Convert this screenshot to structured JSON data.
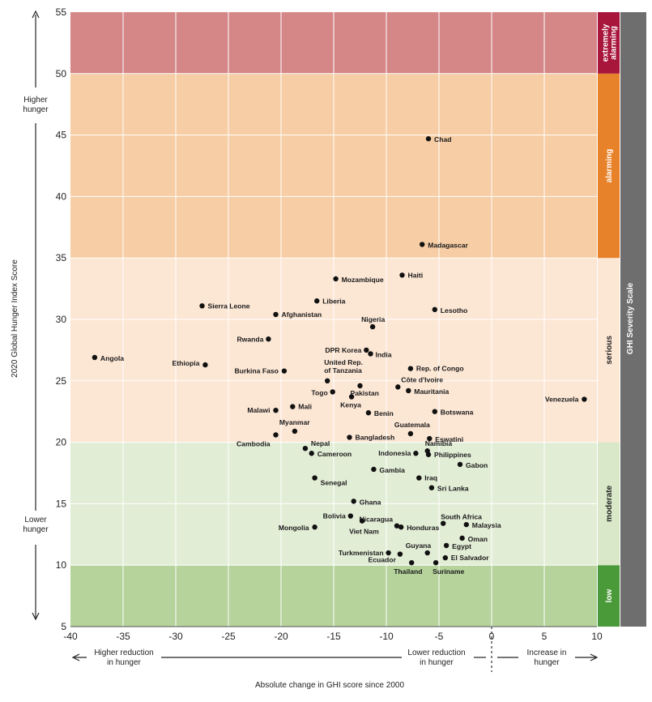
{
  "chart_data": {
    "type": "scatter",
    "title": "",
    "xlabel": "Absolute change in GHI score since 2000",
    "ylabel": "2020 Global Hunger Index Score",
    "xlim": [
      -40,
      10
    ],
    "ylim": [
      5,
      55
    ],
    "x_ticks": [
      -40,
      -35,
      -30,
      -25,
      -20,
      -15,
      -10,
      -5,
      0,
      5,
      10
    ],
    "x_tick_labels": [
      "-40",
      "-35",
      "-30",
      "-25",
      "-20",
      "-15",
      "-10",
      "-5",
      "0",
      "5",
      "10"
    ],
    "y_ticks": [
      5,
      10,
      15,
      20,
      25,
      30,
      35,
      40,
      45,
      50,
      55
    ],
    "grid": true,
    "severity_scale_title": "GHI Severity Scale",
    "bands": [
      {
        "name": "low",
        "from": 5,
        "to": 10,
        "color": "#b5d39b",
        "tag_color": "#4a9a3a"
      },
      {
        "name": "moderate",
        "from": 10,
        "to": 20,
        "color": "#e2edd6",
        "tag_color": "#d8e8c8"
      },
      {
        "name": "serious",
        "from": 20,
        "to": 35,
        "color": "#fce6d4",
        "tag_color": "#fce6d4"
      },
      {
        "name": "alarming",
        "from": 35,
        "to": 50,
        "color": "#f6cda4",
        "tag_color": "#e8822a"
      },
      {
        "name": "extremely alarming",
        "from": 50,
        "to": 55,
        "color": "#d58787",
        "tag_color": "#a8163c"
      }
    ],
    "y_annotations": {
      "higher": "Higher hunger",
      "lower": "Lower hunger"
    },
    "x_annotations": {
      "higher_reduction": "Higher reduction in hunger",
      "lower_reduction": "Lower reduction in hunger",
      "increase": "Increase in hunger"
    },
    "points": [
      {
        "label": "Chad",
        "x": -6.0,
        "y": 44.7
      },
      {
        "label": "Madagascar",
        "x": -6.6,
        "y": 36.1
      },
      {
        "label": "Haiti",
        "x": -8.5,
        "y": 33.6
      },
      {
        "label": "Mozambique",
        "x": -14.8,
        "y": 33.3
      },
      {
        "label": "Liberia",
        "x": -16.6,
        "y": 31.5
      },
      {
        "label": "Sierra Leone",
        "x": -27.5,
        "y": 31.1
      },
      {
        "label": "Lesotho",
        "x": -5.4,
        "y": 30.8
      },
      {
        "label": "Afghanistan",
        "x": -20.5,
        "y": 30.4
      },
      {
        "label": "Nigeria",
        "x": -11.3,
        "y": 29.4
      },
      {
        "label": "Rwanda",
        "x": -21.2,
        "y": 28.4
      },
      {
        "label": "DPR Korea",
        "x": -11.9,
        "y": 27.5
      },
      {
        "label": "India",
        "x": -11.5,
        "y": 27.2
      },
      {
        "label": "Angola",
        "x": -37.7,
        "y": 26.9
      },
      {
        "label": "Ethiopia",
        "x": -27.2,
        "y": 26.3
      },
      {
        "label": "Burkina Faso",
        "x": -19.7,
        "y": 25.8
      },
      {
        "label": "Rep. of Congo",
        "x": -7.7,
        "y": 26.0
      },
      {
        "label": "United Rep. of Tanzania",
        "x": -15.6,
        "y": 25.0
      },
      {
        "label": "Côte d'Ivoire",
        "x": -8.9,
        "y": 24.5
      },
      {
        "label": "Togo",
        "x": -15.1,
        "y": 24.1
      },
      {
        "label": "Pakistan",
        "x": -12.5,
        "y": 24.6
      },
      {
        "label": "Mauritania",
        "x": -7.9,
        "y": 24.2
      },
      {
        "label": "Kenya",
        "x": -13.3,
        "y": 23.7
      },
      {
        "label": "Venezuela",
        "x": 8.8,
        "y": 23.5
      },
      {
        "label": "Mali",
        "x": -18.9,
        "y": 22.9
      },
      {
        "label": "Malawi",
        "x": -20.5,
        "y": 22.6
      },
      {
        "label": "Benin",
        "x": -11.7,
        "y": 22.4
      },
      {
        "label": "Botswana",
        "x": -5.4,
        "y": 22.5
      },
      {
        "label": "Myanmar",
        "x": -18.7,
        "y": 20.9
      },
      {
        "label": "Guatemala",
        "x": -7.7,
        "y": 20.7
      },
      {
        "label": "Cambodia",
        "x": -20.5,
        "y": 20.6
      },
      {
        "label": "Bangladesh",
        "x": -13.5,
        "y": 20.4
      },
      {
        "label": "Eswatini",
        "x": -5.9,
        "y": 20.3
      },
      {
        "label": "Nepal",
        "x": -17.7,
        "y": 19.5
      },
      {
        "label": "Namibia",
        "x": -6.1,
        "y": 19.3
      },
      {
        "label": "Cameroon",
        "x": -17.1,
        "y": 19.1
      },
      {
        "label": "Indonesia",
        "x": -7.2,
        "y": 19.1
      },
      {
        "label": "Philippines",
        "x": -6.0,
        "y": 19.0
      },
      {
        "label": "Gabon",
        "x": -3.0,
        "y": 18.2
      },
      {
        "label": "Gambia",
        "x": -11.2,
        "y": 17.8
      },
      {
        "label": "Iraq",
        "x": -6.9,
        "y": 17.1
      },
      {
        "label": "Senegal",
        "x": -16.8,
        "y": 17.1
      },
      {
        "label": "Sri Lanka",
        "x": -5.7,
        "y": 16.3
      },
      {
        "label": "Ghana",
        "x": -13.1,
        "y": 15.2
      },
      {
        "label": "Bolivia",
        "x": -13.4,
        "y": 14.0
      },
      {
        "label": "Nicaragua",
        "x": -9.0,
        "y": 13.2
      },
      {
        "label": "Viet Nam",
        "x": -12.3,
        "y": 13.6
      },
      {
        "label": "South Africa",
        "x": -4.6,
        "y": 13.4
      },
      {
        "label": "Malaysia",
        "x": -2.4,
        "y": 13.3
      },
      {
        "label": "Mongolia",
        "x": -16.8,
        "y": 13.1
      },
      {
        "label": "Honduras",
        "x": -8.6,
        "y": 13.1
      },
      {
        "label": "Oman",
        "x": -2.8,
        "y": 12.2
      },
      {
        "label": "Egypt",
        "x": -4.3,
        "y": 11.6
      },
      {
        "label": "Guyana",
        "x": -6.1,
        "y": 11.0
      },
      {
        "label": "Turkmenistan",
        "x": -9.8,
        "y": 11.0
      },
      {
        "label": "Ecuador",
        "x": -8.7,
        "y": 10.9
      },
      {
        "label": "El Salvador",
        "x": -4.4,
        "y": 10.6
      },
      {
        "label": "Thailand",
        "x": -7.6,
        "y": 10.2
      },
      {
        "label": "Suriname",
        "x": -5.3,
        "y": 10.2
      }
    ]
  }
}
